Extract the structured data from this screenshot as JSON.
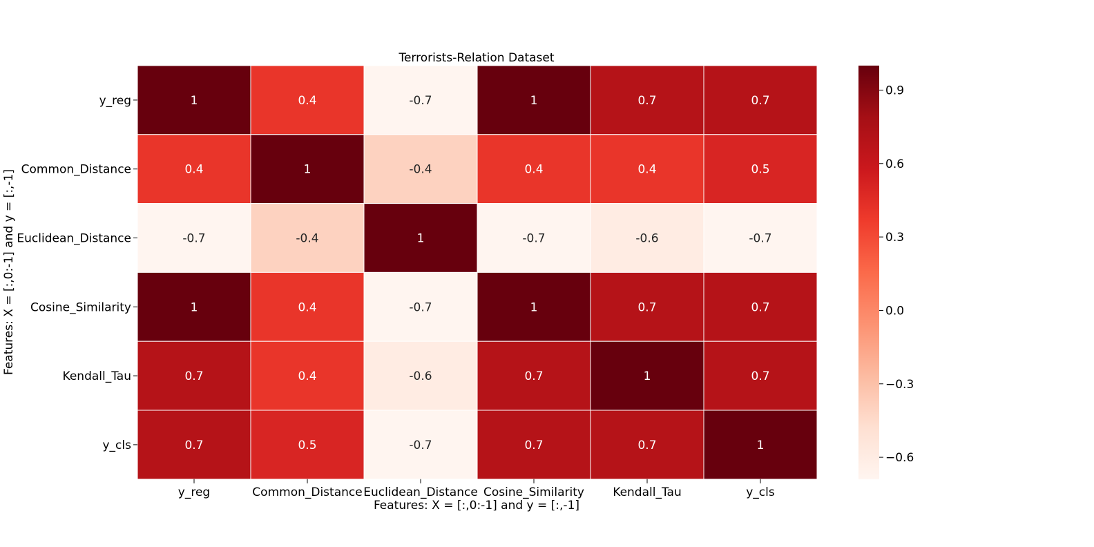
{
  "chart_data": {
    "type": "heatmap",
    "title": "Terrorists-Relation Dataset",
    "xlabel": "Features: X = [:,0:-1] and y = [:,-1]",
    "ylabel": "Features: X = [:,0:-1] and y = [:,-1]",
    "x_categories": [
      "y_reg",
      "Common_Distance",
      "Euclidean_Distance",
      "Cosine_Similarity",
      "Kendall_Tau",
      "y_cls"
    ],
    "y_categories": [
      "y_reg",
      "Common_Distance",
      "Euclidean_Distance",
      "Cosine_Similarity",
      "Kendall_Tau",
      "y_cls"
    ],
    "values": [
      [
        1,
        0.4,
        -0.7,
        1,
        0.7,
        0.7
      ],
      [
        0.4,
        1,
        -0.4,
        0.4,
        0.4,
        0.5
      ],
      [
        -0.7,
        -0.4,
        1,
        -0.7,
        -0.6,
        -0.7
      ],
      [
        1,
        0.4,
        -0.7,
        1,
        0.7,
        0.7
      ],
      [
        0.7,
        0.4,
        -0.6,
        0.7,
        1,
        0.7
      ],
      [
        0.7,
        0.5,
        -0.7,
        0.7,
        0.7,
        1
      ]
    ],
    "cell_labels": [
      [
        "1",
        "0.4",
        "-0.7",
        "1",
        "0.7",
        "0.7"
      ],
      [
        "0.4",
        "1",
        "-0.4",
        "0.4",
        "0.4",
        "0.5"
      ],
      [
        "-0.7",
        "-0.4",
        "1",
        "-0.7",
        "-0.6",
        "-0.7"
      ],
      [
        "1",
        "0.4",
        "-0.7",
        "1",
        "0.7",
        "0.7"
      ],
      [
        "0.7",
        "0.4",
        "-0.6",
        "0.7",
        "1",
        "0.7"
      ],
      [
        "0.7",
        "0.5",
        "-0.7",
        "0.7",
        "0.7",
        "1"
      ]
    ],
    "colormap": "Reds",
    "colormap_stops": [
      "#fff5f0",
      "#fee0d2",
      "#fcbba1",
      "#fc9272",
      "#fb6a4a",
      "#ef3b2c",
      "#cb181d",
      "#a50f15",
      "#67000d"
    ],
    "color_range": [
      -0.69,
      1.0
    ],
    "colorbar_ticks": [
      0.9,
      0.6,
      0.3,
      0.0,
      -0.3,
      -0.6
    ],
    "colorbar_tick_labels": [
      "0.9",
      "0.6",
      "0.3",
      "0.0",
      "−0.3",
      "−0.6"
    ],
    "cell_border_color": "#ffffff"
  }
}
